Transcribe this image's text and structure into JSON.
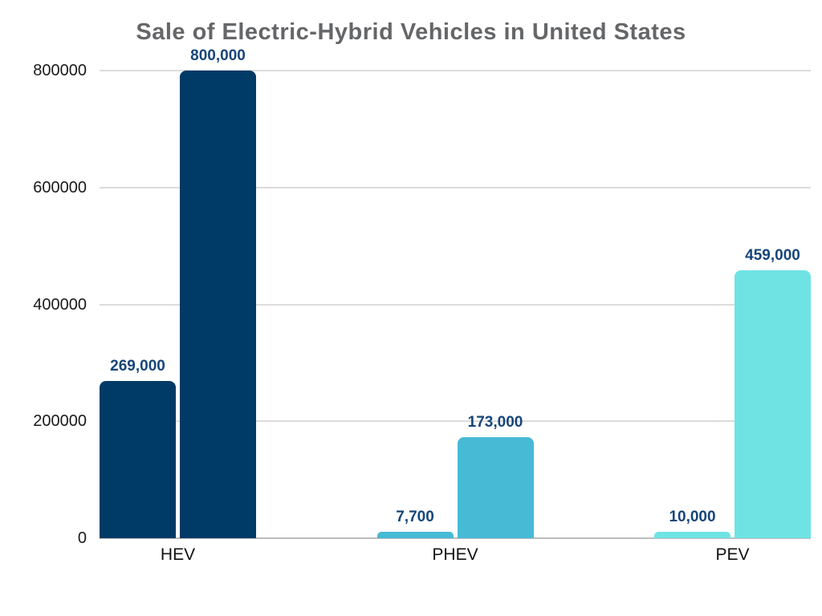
{
  "title": "Sale of Electric-Hybrid Vehicles in United States",
  "chart_data": {
    "type": "bar",
    "title": "Sale of Electric-Hybrid Vehicles in United States",
    "title_color": "#656668",
    "categories": [
      "HEV",
      "PHEV",
      "PEV"
    ],
    "groups": [
      {
        "label": "HEV",
        "color": "#003a66",
        "values": [
          269000,
          800000
        ],
        "value_labels": [
          "269,000",
          "800,000"
        ]
      },
      {
        "label": "PHEV",
        "color": "#47bad6",
        "values": [
          7700,
          173000
        ],
        "value_labels": [
          "7,700",
          "173,000"
        ]
      },
      {
        "label": "PEV",
        "color": "#6fe3e4",
        "values": [
          10000,
          459000
        ],
        "value_labels": [
          "10,000",
          "459,000"
        ]
      }
    ],
    "y_axis": {
      "max": 800000,
      "ticks": [
        0,
        200000,
        400000,
        600000,
        800000
      ],
      "tick_labels": [
        "0",
        "200000",
        "400000",
        "600000",
        "800000"
      ]
    },
    "grid": true,
    "legend": false,
    "value_label_color": "#16457a",
    "xlabel": "",
    "ylabel": ""
  }
}
